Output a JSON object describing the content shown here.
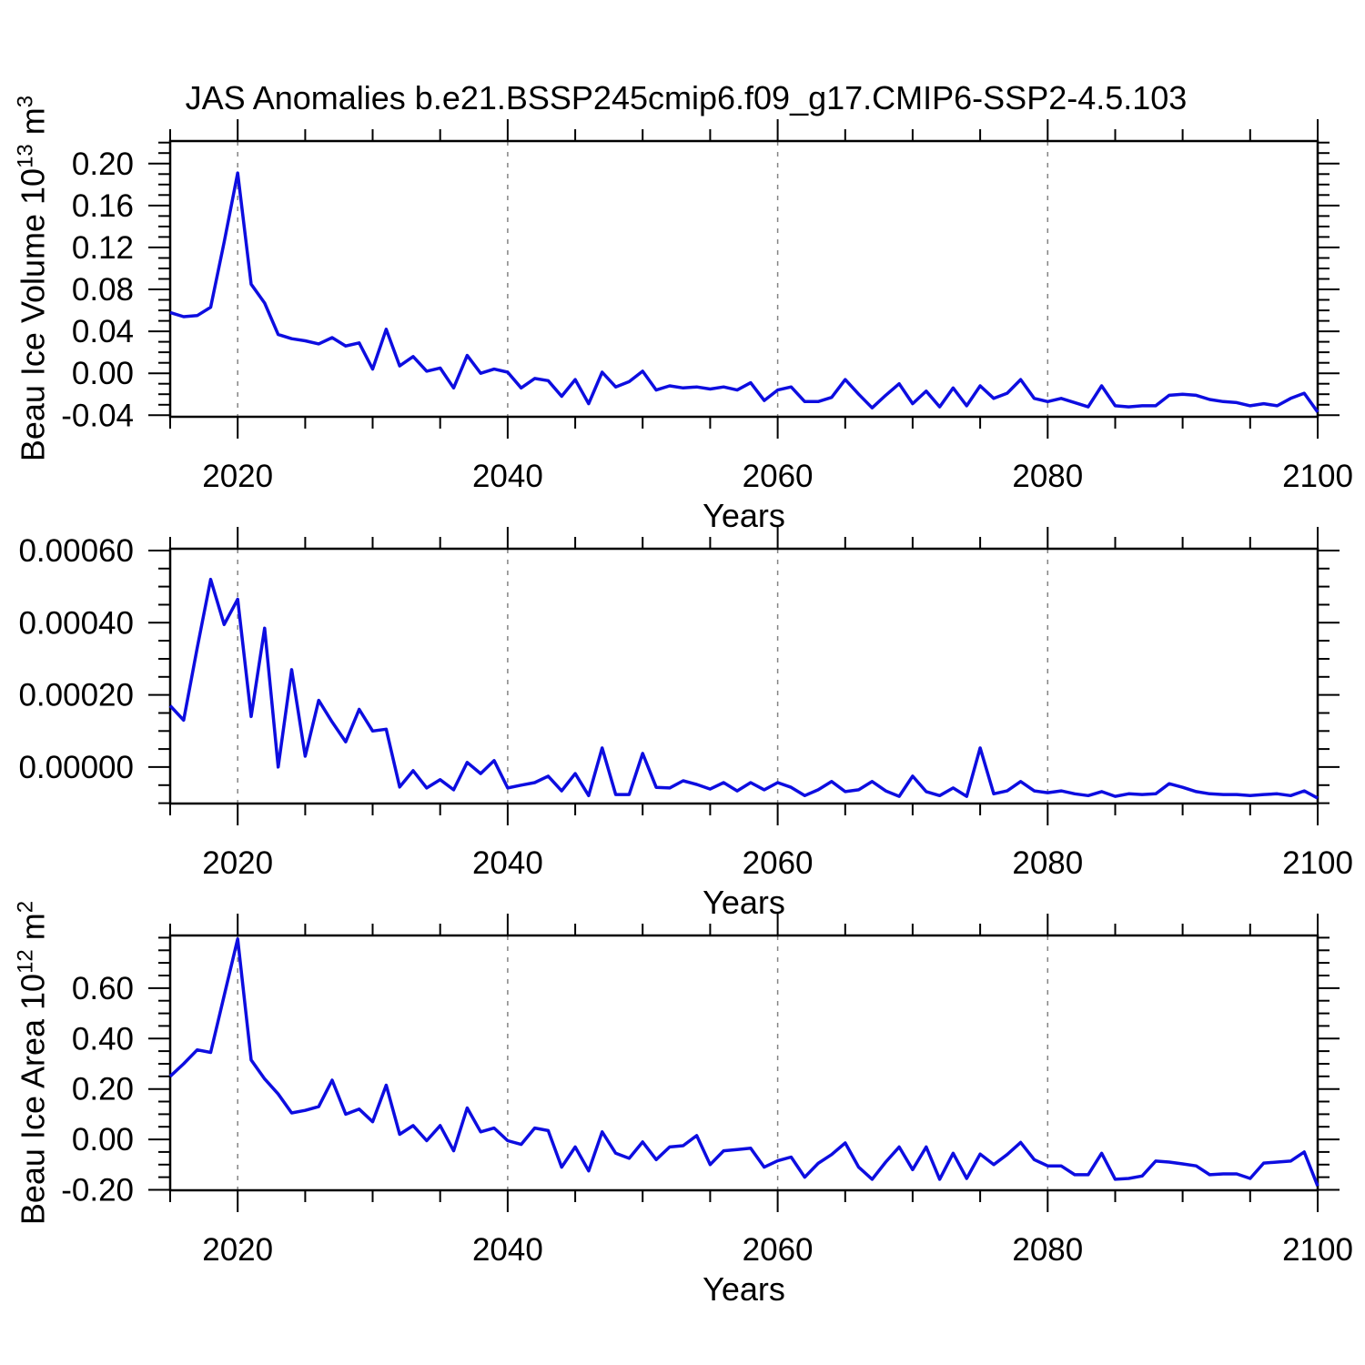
{
  "title": "JAS Anomalies b.e21.BSSP245cmip6.f09_g17.CMIP6-SSP2-4.5.103",
  "x_axis_title": "Years",
  "colors": {
    "line": "#0D0DE0",
    "grid": "#848484",
    "axis": "#000000",
    "background": "#FFFFFF",
    "text": "#000000"
  },
  "panels": [
    {
      "ylabel": {
        "text": "Beau Ice Volume 10",
        "sup1": "13",
        "unit": " m",
        "sup2": "3"
      }
    },
    {
      "ylabel": {
        "text": "",
        "sup1": "",
        "unit": "",
        "sup2": ""
      }
    },
    {
      "ylabel": {
        "text": "Beau Ice Area 10",
        "sup1": "12",
        "unit": " m",
        "sup2": "2"
      }
    }
  ],
  "chart_data": [
    {
      "id": "volume",
      "type": "line",
      "ylabel": "Beau Ice Volume 10^13 m^3",
      "xlabel": "Years",
      "x_start": 2015,
      "x_step": 1,
      "x_end": 2100,
      "xlim": [
        2015,
        2100
      ],
      "ylim": [
        -0.0415,
        0.2215
      ],
      "xticks": [
        2020,
        2040,
        2060,
        2080,
        2100
      ],
      "xtick_labels": [
        "2020",
        "2040",
        "2060",
        "2080",
        "2100"
      ],
      "x_minor_step": 5,
      "ytick_values": [
        0.2,
        0.16,
        0.12,
        0.08,
        0.04,
        0.0,
        -0.04
      ],
      "ytick_labels": [
        "0.20",
        "0.16",
        "0.12",
        "0.08",
        "0.04",
        "0.00",
        "-0.04"
      ],
      "y_minor_step": 0.01,
      "grid_x": [
        2020,
        2040,
        2060,
        2080
      ],
      "values": [
        0.058,
        0.054,
        0.055,
        0.063,
        0.125,
        0.191,
        0.085,
        0.067,
        0.037,
        0.033,
        0.031,
        0.028,
        0.034,
        0.026,
        0.029,
        0.004,
        0.042,
        0.007,
        0.016,
        0.002,
        0.005,
        -0.014,
        0.017,
        0.0,
        0.004,
        0.001,
        -0.014,
        -0.005,
        -0.007,
        -0.022,
        -0.006,
        -0.029,
        0.001,
        -0.013,
        -0.008,
        0.002,
        -0.016,
        -0.012,
        -0.014,
        -0.013,
        -0.015,
        -0.013,
        -0.016,
        -0.009,
        -0.026,
        -0.016,
        -0.013,
        -0.027,
        -0.027,
        -0.023,
        -0.006,
        -0.02,
        -0.033,
        -0.021,
        -0.01,
        -0.029,
        -0.017,
        -0.032,
        -0.014,
        -0.031,
        -0.012,
        -0.024,
        -0.019,
        -0.006,
        -0.024,
        -0.027,
        -0.024,
        -0.028,
        -0.032,
        -0.012,
        -0.031,
        -0.032,
        -0.031,
        -0.031,
        -0.021,
        -0.02,
        -0.021,
        -0.025,
        -0.027,
        -0.028,
        -0.031,
        -0.029,
        -0.031,
        -0.024,
        -0.019,
        -0.037
      ]
    },
    {
      "id": "middle",
      "type": "line",
      "ylabel": "",
      "xlabel": "Years",
      "x_start": 2015,
      "x_step": 1,
      "x_end": 2100,
      "xlim": [
        2015,
        2100
      ],
      "ylim": [
        -0.000101,
        0.000605
      ],
      "xticks": [
        2020,
        2040,
        2060,
        2080,
        2100
      ],
      "xtick_labels": [
        "2020",
        "2040",
        "2060",
        "2080",
        "2100"
      ],
      "x_minor_step": 5,
      "ytick_values": [
        0.0006,
        0.0004,
        0.0002,
        0.0
      ],
      "ytick_labels": [
        "0.00060",
        "0.00040",
        "0.00020",
        "0.00000"
      ],
      "y_minor_step": 5e-05,
      "grid_x": [
        2020,
        2040,
        2060,
        2080
      ],
      "values": [
        0.00017,
        0.00013,
        0.00033,
        0.00052,
        0.000395,
        0.000465,
        0.00014,
        0.000385,
        0.0,
        0.00027,
        3e-05,
        0.000185,
        0.000125,
        7e-05,
        0.00016,
        0.0001,
        0.000105,
        -5.5e-05,
        -1e-05,
        -5.8e-05,
        -3.5e-05,
        -6.3e-05,
        1.3e-05,
        -1.8e-05,
        1.8e-05,
        -5.8e-05,
        -5e-05,
        -4.3e-05,
        -2.5e-05,
        -6.6e-05,
        -1.8e-05,
        -7.9e-05,
        5.3e-05,
        -7.6e-05,
        -7.6e-05,
        3.8e-05,
        -5.6e-05,
        -5.8e-05,
        -3.8e-05,
        -4.8e-05,
        -6.1e-05,
        -4.3e-05,
        -6.6e-05,
        -4.3e-05,
        -6.3e-05,
        -4.3e-05,
        -5.6e-05,
        -7.9e-05,
        -6.3e-05,
        -4e-05,
        -6.8e-05,
        -6.3e-05,
        -4e-05,
        -6.6e-05,
        -8.1e-05,
        -2.5e-05,
        -6.8e-05,
        -7.9e-05,
        -5.8e-05,
        -8.1e-05,
        5.3e-05,
        -7.4e-05,
        -6.6e-05,
        -4e-05,
        -6.6e-05,
        -7.1e-05,
        -6.6e-05,
        -7.4e-05,
        -7.9e-05,
        -6.8e-05,
        -8.1e-05,
        -7.4e-05,
        -7.6e-05,
        -7.4e-05,
        -4.6e-05,
        -5.6e-05,
        -6.8e-05,
        -7.4e-05,
        -7.6e-05,
        -7.6e-05,
        -7.9e-05,
        -7.6e-05,
        -7.4e-05,
        -7.9e-05,
        -6.6e-05,
        -8.6e-05
      ]
    },
    {
      "id": "area",
      "type": "line",
      "ylabel": "Beau Ice Area 10^12 m^2",
      "xlabel": "Years",
      "x_start": 2015,
      "x_step": 1,
      "x_end": 2100,
      "xlim": [
        2015,
        2100
      ],
      "ylim": [
        -0.2018,
        0.8088
      ],
      "xticks": [
        2020,
        2040,
        2060,
        2080,
        2100
      ],
      "xtick_labels": [
        "2020",
        "2040",
        "2060",
        "2080",
        "2100"
      ],
      "x_minor_step": 5,
      "ytick_values": [
        0.6,
        0.4,
        0.2,
        0.0,
        -0.2
      ],
      "ytick_labels": [
        "0.60",
        "0.40",
        "0.20",
        "0.00",
        "-0.20"
      ],
      "y_minor_step": 0.05,
      "grid_x": [
        2020,
        2040,
        2060,
        2080
      ],
      "values": [
        0.25,
        0.3,
        0.355,
        0.345,
        0.57,
        0.795,
        0.315,
        0.24,
        0.18,
        0.105,
        0.115,
        0.13,
        0.235,
        0.1,
        0.12,
        0.07,
        0.215,
        0.02,
        0.055,
        -0.005,
        0.055,
        -0.045,
        0.125,
        0.03,
        0.045,
        -0.005,
        -0.02,
        0.045,
        0.035,
        -0.11,
        -0.03,
        -0.125,
        0.03,
        -0.055,
        -0.075,
        -0.01,
        -0.08,
        -0.03,
        -0.025,
        0.015,
        -0.1,
        -0.045,
        -0.04,
        -0.035,
        -0.11,
        -0.085,
        -0.07,
        -0.15,
        -0.095,
        -0.06,
        -0.014,
        -0.11,
        -0.158,
        -0.09,
        -0.03,
        -0.12,
        -0.03,
        -0.158,
        -0.055,
        -0.155,
        -0.058,
        -0.1,
        -0.06,
        -0.012,
        -0.08,
        -0.105,
        -0.105,
        -0.14,
        -0.14,
        -0.055,
        -0.158,
        -0.155,
        -0.145,
        -0.086,
        -0.09,
        -0.097,
        -0.105,
        -0.14,
        -0.137,
        -0.137,
        -0.155,
        -0.094,
        -0.09,
        -0.086,
        -0.05,
        -0.185
      ]
    }
  ]
}
